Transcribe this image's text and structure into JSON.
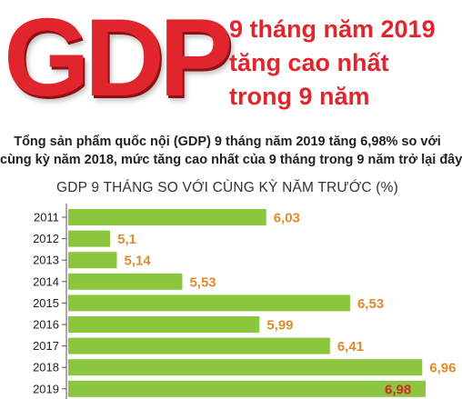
{
  "logo_text": "GDP",
  "headline": [
    "9 tháng năm 2019",
    "tăng cao nhất",
    "trong 9 năm"
  ],
  "summary": [
    "Tổng sản phẩm quốc nội (GDP) 9 tháng năm 2019 tăng 6,98% so với",
    "cùng kỳ năm 2018, mức tăng cao nhất của 9 tháng trong 9 năm trở lại đây"
  ],
  "colors": {
    "brand_red": "#e0262c",
    "bar_green": "#8cc63f",
    "value_orange": "#e08a2e",
    "highlight_red": "#d7282f"
  },
  "chart_data": {
    "type": "bar",
    "orientation": "horizontal",
    "title": "GDP 9 THÁNG SO VỚI CÙNG KỲ NĂM TRƯỚC (%)",
    "xlabel": "",
    "ylabel": "",
    "categories": [
      "2011",
      "2012",
      "2013",
      "2014",
      "2015",
      "2016",
      "2017",
      "2018",
      "2019"
    ],
    "values": [
      6.03,
      5.1,
      5.14,
      5.53,
      6.53,
      5.99,
      6.41,
      6.96,
      6.98
    ],
    "value_labels": [
      "6,03",
      "5,1",
      "5,14",
      "5,53",
      "6,53",
      "5,99",
      "6,41",
      "6,96",
      "6,98"
    ],
    "highlight_index": 8,
    "xlim": [
      4.85,
      6.98
    ],
    "grid": false,
    "legend": "none"
  }
}
